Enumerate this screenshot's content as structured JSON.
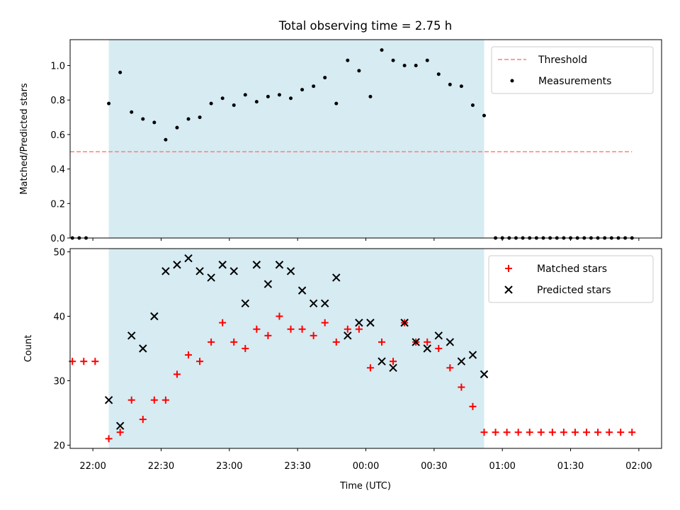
{
  "title": "Total observing time = 2.75 h",
  "colors": {
    "observing_band": "#add8e6",
    "threshold": "#ff7f7f",
    "measurements": "#000000",
    "matched": "#ff0000",
    "predicted": "#000000"
  },
  "chart_data": [
    {
      "type": "scatter",
      "ylabel": "Matched/Predicted stars",
      "xlim": [
        "21:50",
        "02:10"
      ],
      "ylim": [
        0,
        1.15
      ],
      "yticks": [
        "0.0",
        "0.2",
        "0.4",
        "0.6",
        "0.8",
        "1.0"
      ],
      "yticks_values": [
        0,
        0.2,
        0.4,
        0.6,
        0.8,
        1.0
      ],
      "x_tick_labels_shown": false,
      "shaded_range": [
        "22:07",
        "00:52"
      ],
      "legend_position": "upper right",
      "series": [
        {
          "name": "Threshold",
          "kind": "dashed-line",
          "x": [
            "21:50",
            "01:57"
          ],
          "y": [
            0.5,
            0.5
          ]
        },
        {
          "name": "Measurements",
          "kind": "dots",
          "x": [
            "21:51",
            "21:54",
            "21:57",
            "22:07",
            "22:12",
            "22:17",
            "22:22",
            "22:27",
            "22:32",
            "22:37",
            "22:42",
            "22:47",
            "22:52",
            "22:57",
            "23:02",
            "23:07",
            "23:12",
            "23:17",
            "23:22",
            "23:27",
            "23:32",
            "23:37",
            "23:42",
            "23:47",
            "23:52",
            "23:57",
            "00:02",
            "00:07",
            "00:12",
            "00:17",
            "00:22",
            "00:27",
            "00:32",
            "00:37",
            "00:42",
            "00:47",
            "00:52",
            "00:57",
            "01:00",
            "01:03",
            "01:06",
            "01:09",
            "01:12",
            "01:15",
            "01:18",
            "01:21",
            "01:24",
            "01:27",
            "01:30",
            "01:33",
            "01:36",
            "01:39",
            "01:42",
            "01:45",
            "01:48",
            "01:51",
            "01:54",
            "01:57"
          ],
          "y": [
            0,
            0,
            0,
            0.78,
            0.96,
            0.73,
            0.69,
            0.67,
            0.57,
            0.64,
            0.69,
            0.7,
            0.78,
            0.81,
            0.77,
            0.83,
            0.79,
            0.82,
            0.83,
            0.81,
            0.86,
            0.88,
            0.93,
            0.78,
            1.03,
            0.97,
            0.82,
            1.09,
            1.03,
            1.0,
            1.0,
            1.03,
            0.95,
            0.89,
            0.88,
            0.77,
            0.71,
            0,
            0,
            0,
            0,
            0,
            0,
            0,
            0,
            0,
            0,
            0,
            0,
            0,
            0,
            0,
            0,
            0,
            0,
            0,
            0,
            0
          ]
        }
      ]
    },
    {
      "type": "scatter",
      "ylabel": "Count",
      "xlabel": "Time (UTC)",
      "xlim": [
        "21:50",
        "02:10"
      ],
      "ylim": [
        19.5,
        50.5
      ],
      "yticks": [
        "20",
        "30",
        "40",
        "50"
      ],
      "yticks_values": [
        20,
        30,
        40,
        50
      ],
      "xticks": [
        "22:00",
        "22:30",
        "23:00",
        "23:30",
        "00:00",
        "00:30",
        "01:00",
        "01:30",
        "02:00"
      ],
      "shaded_range": [
        "22:07",
        "00:52"
      ],
      "legend_position": "upper right",
      "series": [
        {
          "name": "Matched stars",
          "marker": "+",
          "x": [
            "21:51",
            "21:56",
            "22:01",
            "22:07",
            "22:12",
            "22:17",
            "22:22",
            "22:27",
            "22:32",
            "22:37",
            "22:42",
            "22:47",
            "22:52",
            "22:57",
            "23:02",
            "23:07",
            "23:12",
            "23:17",
            "23:22",
            "23:27",
            "23:32",
            "23:37",
            "23:42",
            "23:47",
            "23:52",
            "23:57",
            "00:02",
            "00:07",
            "00:12",
            "00:17",
            "00:22",
            "00:27",
            "00:32",
            "00:37",
            "00:42",
            "00:47",
            "00:52",
            "00:57",
            "01:02",
            "01:07",
            "01:12",
            "01:17",
            "01:22",
            "01:27",
            "01:32",
            "01:37",
            "01:42",
            "01:47",
            "01:52",
            "01:57"
          ],
          "y": [
            33,
            33,
            33,
            21,
            22,
            27,
            24,
            27,
            27,
            31,
            34,
            33,
            36,
            39,
            36,
            35,
            38,
            37,
            40,
            38,
            38,
            37,
            39,
            36,
            38,
            38,
            32,
            36,
            33,
            39,
            36,
            36,
            35,
            32,
            29,
            26,
            22,
            22,
            22,
            22,
            22,
            22,
            22,
            22,
            22,
            22,
            22,
            22,
            22,
            22
          ]
        },
        {
          "name": "Predicted stars",
          "marker": "x",
          "x": [
            "22:07",
            "22:12",
            "22:17",
            "22:22",
            "22:27",
            "22:32",
            "22:37",
            "22:42",
            "22:47",
            "22:52",
            "22:57",
            "23:02",
            "23:07",
            "23:12",
            "23:17",
            "23:22",
            "23:27",
            "23:32",
            "23:37",
            "23:42",
            "23:47",
            "23:52",
            "23:57",
            "00:02",
            "00:07",
            "00:12",
            "00:17",
            "00:22",
            "00:27",
            "00:32",
            "00:37",
            "00:42",
            "00:47",
            "00:52"
          ],
          "y": [
            27,
            23,
            37,
            35,
            40,
            47,
            48,
            49,
            47,
            46,
            48,
            47,
            42,
            48,
            45,
            48,
            47,
            44,
            42,
            42,
            46,
            37,
            39,
            39,
            33,
            32,
            39,
            36,
            35,
            37,
            36,
            33,
            34,
            31
          ]
        }
      ]
    }
  ]
}
